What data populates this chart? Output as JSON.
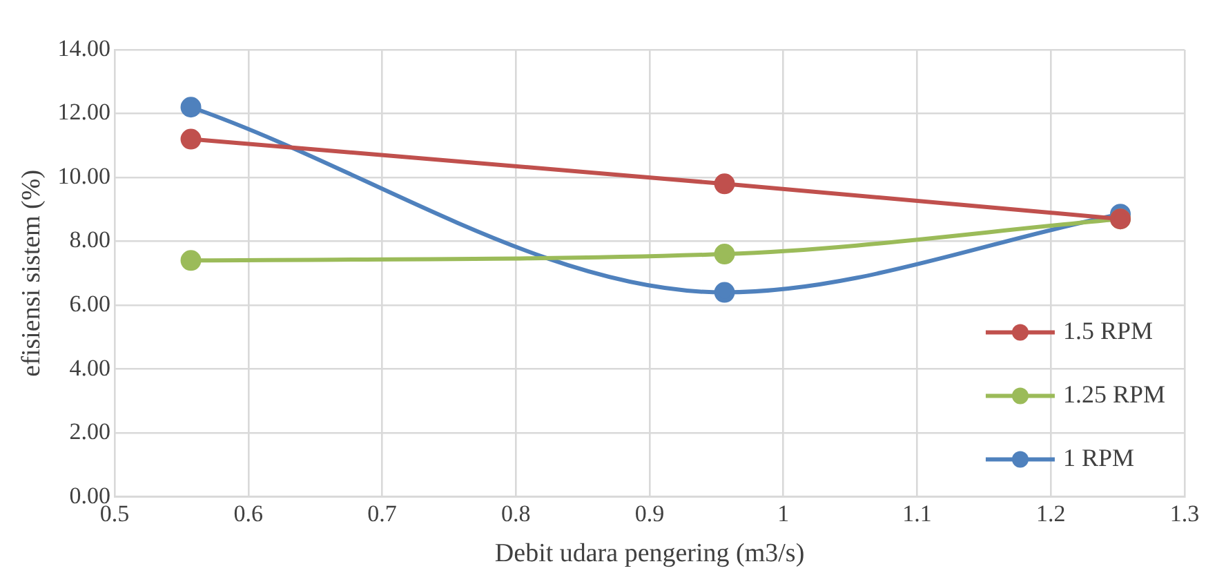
{
  "chart_data": {
    "type": "line",
    "xlabel": "Debit udara pengering (m3/s)",
    "ylabel": "efisiensi sistem (%)",
    "x": [
      0.557,
      0.956,
      1.252
    ],
    "series": [
      {
        "name": "1.5 RPM",
        "color": "#c0504d",
        "values": [
          11.2,
          9.8,
          8.7
        ]
      },
      {
        "name": "1.25 RPM",
        "color": "#9bbb59",
        "values": [
          7.4,
          7.6,
          8.7
        ]
      },
      {
        "name": "1 RPM",
        "color": "#4f81bd",
        "values": [
          12.2,
          6.4,
          8.85
        ]
      }
    ],
    "xlim": [
      0.5,
      1.3
    ],
    "xticks": [
      0.5,
      0.6,
      0.7,
      0.8,
      0.9,
      1,
      1.1,
      1.2,
      1.3
    ],
    "ylim": [
      0,
      14
    ],
    "yticks": [
      {
        "value": 0,
        "label": "0.00"
      },
      {
        "value": 2,
        "label": "2.00"
      },
      {
        "value": 4,
        "label": "4.00"
      },
      {
        "value": 6,
        "label": "6.00"
      },
      {
        "value": 8,
        "label": "8.00"
      },
      {
        "value": 10,
        "label": "10.00"
      },
      {
        "value": 12,
        "label": "12.00"
      },
      {
        "value": 14,
        "label": "14.00"
      }
    ],
    "grid": true,
    "legend": "bottom right",
    "marker": "circle",
    "line_style": "solid"
  }
}
